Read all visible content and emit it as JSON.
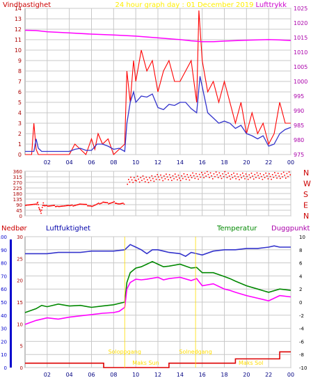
{
  "header": {
    "left_title": "Vindhastighet",
    "center_title": "24 hour graph day : 01 December 2019",
    "right_title": "Lufttrykk"
  },
  "colors": {
    "wind": "#ff0000",
    "wind_avg": "#3333cc",
    "pressure": "#ff00ff",
    "direction": "#ff0000",
    "humidity": "#3333cc",
    "temperature": "#008800",
    "dewpoint": "#ff00ff",
    "rain": "#dd0000",
    "rain_axis": "#0000cc",
    "sun": "#ffdd00",
    "grid": "#c8c8c8",
    "axis_text_left": "#aa0000",
    "axis_text_right": "#aa00aa"
  },
  "x_ticks": [
    "02",
    "04",
    "06",
    "08",
    "10",
    "12",
    "14",
    "16",
    "18",
    "20",
    "22",
    "00"
  ],
  "chart_data": [
    {
      "type": "line",
      "title": "24 hour graph day : 01 December 2019",
      "ylabel": "Vindhastighet",
      "y2label": "Lufttrykk",
      "ylim": [
        0,
        14
      ],
      "y2lim": [
        975,
        1025
      ],
      "y_ticks": [
        0,
        1,
        2,
        3,
        4,
        5,
        6,
        7,
        8,
        9,
        10,
        11,
        12,
        13,
        14
      ],
      "y2_ticks": [
        975,
        980,
        985,
        990,
        995,
        1000,
        1005,
        1010,
        1015,
        1020,
        1025
      ],
      "series": [
        {
          "axis": "y",
          "hours": [
            0,
            0.6,
            0.8,
            1,
            1.2,
            1.5,
            2,
            3,
            4,
            4.5,
            5,
            5.5,
            6,
            6.3,
            6.6,
            7,
            7.5,
            8,
            8.5,
            9,
            9.2,
            9.5,
            9.8,
            10,
            10.5,
            11,
            11.5,
            12,
            12.5,
            13,
            13.5,
            14,
            14.5,
            15,
            15.5,
            15.7,
            16,
            16.5,
            17,
            17.5,
            18,
            18.5,
            19,
            19.5,
            20,
            20.5,
            21,
            21.5,
            22,
            22.5,
            23,
            23.5,
            24
          ],
          "values": [
            0,
            0,
            3,
            0.5,
            0,
            0,
            0,
            0,
            0,
            1,
            0.5,
            0,
            1.5,
            0.5,
            2,
            1,
            1.5,
            0,
            0.5,
            1,
            8,
            5,
            9,
            7,
            10,
            8,
            9,
            6,
            8,
            9,
            7,
            7,
            8,
            9,
            5,
            13.8,
            9,
            6,
            7,
            5,
            7,
            5,
            3,
            5,
            2,
            4,
            2,
            3,
            1,
            2,
            5,
            3,
            3
          ]
        },
        {
          "axis": "y",
          "hours": [
            0,
            0.8,
            1,
            1.2,
            1.5,
            2,
            3,
            4,
            4.5,
            5,
            5.5,
            6,
            6.5,
            7,
            7.5,
            8,
            8.5,
            9,
            9.2,
            9.5,
            9.8,
            10,
            10.5,
            11,
            11.5,
            12,
            12.5,
            13,
            13.5,
            14,
            14.5,
            15,
            15.5,
            15.8,
            16,
            16.5,
            17,
            17.5,
            18,
            18.5,
            19,
            19.5,
            20,
            20.5,
            21,
            21.5,
            22,
            22.5,
            23,
            23.5,
            24
          ],
          "values": [
            0.3,
            0.3,
            1.5,
            0.6,
            0.3,
            0.3,
            0.3,
            0.3,
            0.5,
            0.6,
            0.4,
            0.4,
            1,
            1,
            0.8,
            0.5,
            0.6,
            0.3,
            3,
            5,
            6,
            5,
            5.6,
            5.5,
            5.8,
            4.5,
            4.3,
            4.8,
            4.7,
            5,
            5,
            4.4,
            4,
            7.5,
            6.5,
            4,
            3.5,
            3,
            3.2,
            3,
            2.5,
            2.8,
            2,
            1.8,
            1.5,
            1.8,
            0.8,
            1,
            2,
            2.4,
            2.6
          ]
        },
        {
          "axis": "y2",
          "hours": [
            0,
            1,
            2,
            4,
            6,
            8,
            10,
            12,
            14,
            15,
            16,
            17,
            18,
            20,
            22,
            23,
            24
          ],
          "values": [
            1017.5,
            1017.4,
            1017,
            1016.6,
            1016.2,
            1015.9,
            1015.5,
            1014.9,
            1014.3,
            1013.9,
            1013.6,
            1013.6,
            1013.8,
            1014.1,
            1014.3,
            1014.2,
            1014
          ]
        }
      ]
    },
    {
      "type": "scatter",
      "ylim": [
        0,
        360
      ],
      "y_ticks": [
        0,
        45,
        90,
        135,
        180,
        225,
        270,
        315,
        360
      ],
      "y_tick_labels": [
        "0",
        "45",
        "90",
        "135",
        "180",
        "225",
        "270",
        "315",
        "360"
      ],
      "right_labels": [
        "N",
        "W",
        "S",
        "E",
        "N"
      ],
      "segments": [
        {
          "hours": [
            0,
            1,
            1.1,
            1.2,
            1.3,
            1.4,
            1.5,
            1.6,
            1.7,
            2,
            3,
            4,
            5,
            6,
            6.5,
            7,
            7.5,
            8,
            8.5,
            9
          ],
          "values": [
            90,
            90,
            110,
            70,
            45,
            20,
            70,
            100,
            80,
            80,
            80,
            80,
            95,
            80,
            95,
            110,
            100,
            110,
            95,
            100
          ]
        },
        {
          "hours": [
            9.2,
            10,
            11,
            12,
            13,
            14,
            15,
            16,
            17,
            18,
            19,
            20,
            21,
            22,
            23,
            24
          ],
          "values": [
            285,
            300,
            295,
            305,
            310,
            310,
            320,
            330,
            325,
            330,
            320,
            325,
            320,
            320,
            330,
            325
          ]
        }
      ]
    },
    {
      "type": "line",
      "left_label": "Nedbør",
      "left2_label": "Luftfuktighet",
      "right2_label": "Temperatur",
      "right_label": "Duggpunkt",
      "y_rain_ticks": [
        0,
        5,
        10,
        15,
        20,
        25,
        30
      ],
      "y_rain_lim": [
        0,
        30
      ],
      "y_hum_ticks": [
        0,
        10,
        20,
        30,
        40,
        50,
        60,
        70,
        80,
        90,
        100
      ],
      "y_hum_lim": [
        0,
        100
      ],
      "y_temp_ticks": [
        -10,
        -8,
        -6,
        -4,
        -2,
        0,
        2,
        4,
        6,
        8,
        10
      ],
      "y_temp_lim": [
        -10,
        10
      ],
      "annotations": [
        {
          "text": "Soloppgang",
          "hour": 9.0
        },
        {
          "text": "Solnedgang",
          "hour": 15.4
        },
        {
          "text": "Maks Sun",
          "hour": 10.9
        },
        {
          "text": "Maks Sol",
          "hour": 20.4
        }
      ],
      "series": [
        {
          "axis": "hum",
          "hours": [
            0,
            1,
            2,
            3,
            4,
            5,
            6,
            7,
            8,
            9,
            9.5,
            10,
            10.5,
            11,
            11.5,
            12,
            12.5,
            13,
            14,
            14.5,
            15,
            15.5,
            16,
            17,
            18,
            19,
            20,
            21,
            22,
            22.5,
            23,
            24
          ],
          "values": [
            87,
            87,
            87,
            88,
            88,
            88,
            89,
            89,
            89,
            90,
            94,
            92,
            90,
            87,
            90,
            90,
            89,
            88,
            87,
            85,
            88,
            87,
            86,
            89,
            90,
            90,
            91,
            91,
            92,
            93,
            92,
            92
          ]
        },
        {
          "axis": "temp",
          "hours": [
            0,
            1,
            1.5,
            2,
            3,
            4,
            5,
            6,
            7,
            8,
            8.5,
            9,
            9.2,
            9.5,
            10,
            10.5,
            11,
            11.5,
            12,
            12.5,
            13,
            14,
            15,
            15.5,
            16,
            17,
            18,
            18.5,
            19,
            20,
            21,
            22,
            23,
            24
          ],
          "values": [
            -1.6,
            -1,
            -0.5,
            -0.7,
            -0.3,
            -0.6,
            -0.5,
            -0.8,
            -0.6,
            -0.4,
            -0.2,
            0,
            3,
            4.5,
            5.2,
            5.4,
            5.8,
            6.2,
            5.8,
            5.4,
            5.5,
            5.8,
            5.2,
            5.3,
            4.5,
            4.5,
            3.9,
            3.6,
            3.2,
            2.5,
            2,
            1.5,
            2,
            1.8
          ]
        },
        {
          "axis": "temp",
          "hours": [
            0,
            1,
            2,
            3,
            4,
            5,
            6,
            7,
            8,
            8.5,
            9,
            9.2,
            9.5,
            10,
            10.5,
            11,
            12,
            12.5,
            13,
            14,
            15,
            15.5,
            16,
            17,
            18,
            18.5,
            19,
            20,
            21,
            22,
            23,
            24
          ],
          "values": [
            -3.4,
            -2.8,
            -2.4,
            -2.6,
            -2.3,
            -2.1,
            -1.9,
            -1.7,
            -1.6,
            -1.4,
            -0.8,
            2,
            3,
            3.5,
            3.4,
            3.5,
            3.8,
            3.4,
            3.6,
            3.8,
            3.3,
            3.6,
            2.5,
            2.8,
            2,
            1.8,
            1.5,
            1,
            0.6,
            0.2,
            1,
            0.8
          ]
        },
        {
          "axis": "rain",
          "hours": [
            0,
            2,
            4,
            6,
            7,
            7.1,
            12.9,
            13,
            18.9,
            19,
            21.9,
            22,
            22.9,
            23,
            24
          ],
          "values": [
            1,
            1,
            1,
            1,
            1,
            0,
            0,
            1,
            1,
            2,
            2,
            2,
            2,
            3.6,
            3.6
          ]
        }
      ]
    }
  ]
}
